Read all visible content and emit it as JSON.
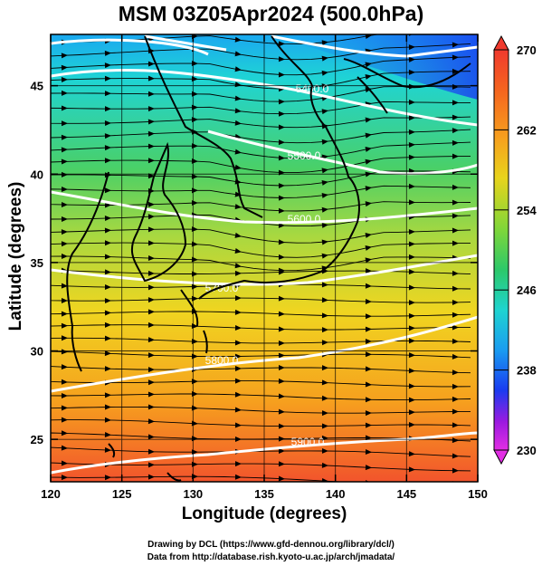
{
  "title": "MSM 03Z05Apr2024 (500.0hPa)",
  "x_axis": {
    "label": "Longitude (degrees)",
    "ticks": [
      "120",
      "125",
      "130",
      "135",
      "140",
      "145",
      "150"
    ]
  },
  "y_axis": {
    "label": "Latitude  (degrees)",
    "ticks": [
      "25",
      "30",
      "35",
      "40",
      "45"
    ]
  },
  "colorbar": {
    "ticks": [
      "270",
      "262",
      "254",
      "246",
      "238",
      "230"
    ],
    "colors": [
      "#f03a2e",
      "#f77c1e",
      "#f3c41a",
      "#d6e43a",
      "#42c94a",
      "#1fd4c4",
      "#1a9bf0",
      "#1a3ef0",
      "#a21ae0",
      "#e12ee6"
    ]
  },
  "contours": [
    "5400.0",
    "5500.0",
    "5600.0",
    "5700.0",
    "5800.0",
    "5900.0"
  ],
  "credits": [
    "Drawing by DCL (https://www.gfd-dennou.org/library/dcl/)",
    "Data from http://database.rish.kyoto-u.ac.jp/arch/jmadata/"
  ]
}
